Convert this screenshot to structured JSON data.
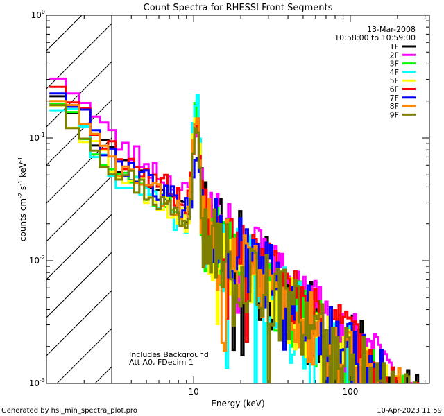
{
  "chart_data": {
    "type": "line",
    "title": "Count Spectra for RHESSI Front Segments",
    "xlabel": "Energy (keV)",
    "ylabel": {
      "text": "counts cm",
      "sup1": "-2",
      "mid": " s",
      "sup2": "-1",
      "mid2": " keV",
      "sup3": "-1"
    },
    "x_scale": "log",
    "y_scale": "log",
    "xlim": [
      1.15,
      320
    ],
    "ylim": [
      0.001,
      1.0
    ],
    "x_ticks": [
      {
        "v": 10,
        "label": "10"
      },
      {
        "v": 100,
        "label": "100"
      }
    ],
    "y_ticks": [
      {
        "v": 1,
        "label": "10",
        "exp": "0"
      },
      {
        "v": 0.1,
        "label": "10",
        "exp": "-1"
      },
      {
        "v": 0.01,
        "label": "10",
        "exp": "-2"
      },
      {
        "v": 0.001,
        "label": "10",
        "exp": "-3"
      }
    ],
    "excluded_region": {
      "x_from": 1.15,
      "x_to": 3.0,
      "style": "hatched"
    },
    "annotations": {
      "date": "13-Mar-2008",
      "time_range": "10:58:00 to 10:59:00",
      "note1": "Includes Background",
      "note2": "Att A0, FDecim 1"
    },
    "footer_left": "Generated by hsi_min_spectra_plot.pro",
    "footer_right": "10-Apr-2023 11:59",
    "series": [
      {
        "name": "1F",
        "color": "#000000",
        "base": 0.072,
        "peak": 0.15,
        "noise": 0.55,
        "seed": 11
      },
      {
        "name": "2F",
        "color": "#ff00ff",
        "base": 0.1,
        "peak": 0.11,
        "noise": 0.35,
        "seed": 23
      },
      {
        "name": "3F",
        "color": "#00ff00",
        "base": 0.062,
        "peak": 0.14,
        "noise": 0.45,
        "seed": 37
      },
      {
        "name": "4F",
        "color": "#00ffff",
        "base": 0.055,
        "peak": 0.22,
        "noise": 0.55,
        "seed": 41
      },
      {
        "name": "5F",
        "color": "#ffff00",
        "base": 0.06,
        "peak": 0.15,
        "noise": 0.45,
        "seed": 53
      },
      {
        "name": "6F",
        "color": "#ff0000",
        "base": 0.085,
        "peak": 0.12,
        "noise": 0.4,
        "seed": 67
      },
      {
        "name": "7F",
        "color": "#0000ff",
        "base": 0.075,
        "peak": 0.055,
        "noise": 0.45,
        "seed": 79
      },
      {
        "name": "8F",
        "color": "#ff8800",
        "base": 0.065,
        "peak": 0.13,
        "noise": 0.45,
        "seed": 83
      },
      {
        "name": "9F",
        "color": "#808000",
        "base": 0.06,
        "peak": 0.14,
        "noise": 0.5,
        "seed": 97
      }
    ]
  }
}
